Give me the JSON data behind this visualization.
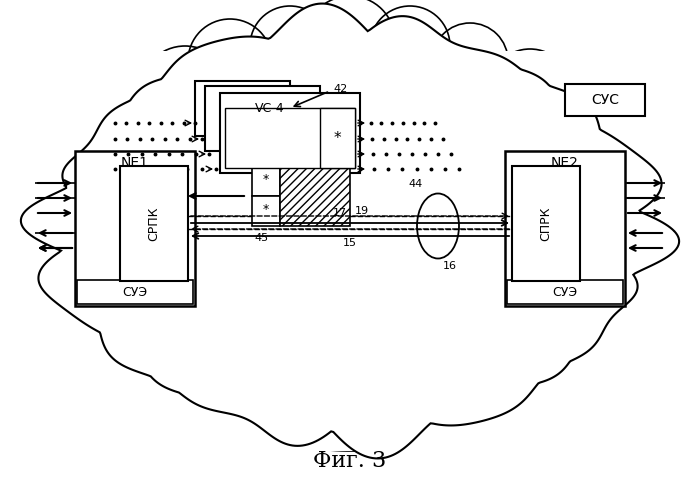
{
  "title": "Фиг. 3",
  "background": "#ffffff",
  "labels": {
    "NE1": "NE1",
    "NE2": "NE2",
    "SRPK": "СРПК",
    "SPRK": "СПРК",
    "SUE": "СУЭ",
    "SUS": "СУС",
    "VC4": "VC-4",
    "num42": "42",
    "num44": "44",
    "num15": "15",
    "num16": "16",
    "num17": "17",
    "num19": "19",
    "num45": "45"
  }
}
